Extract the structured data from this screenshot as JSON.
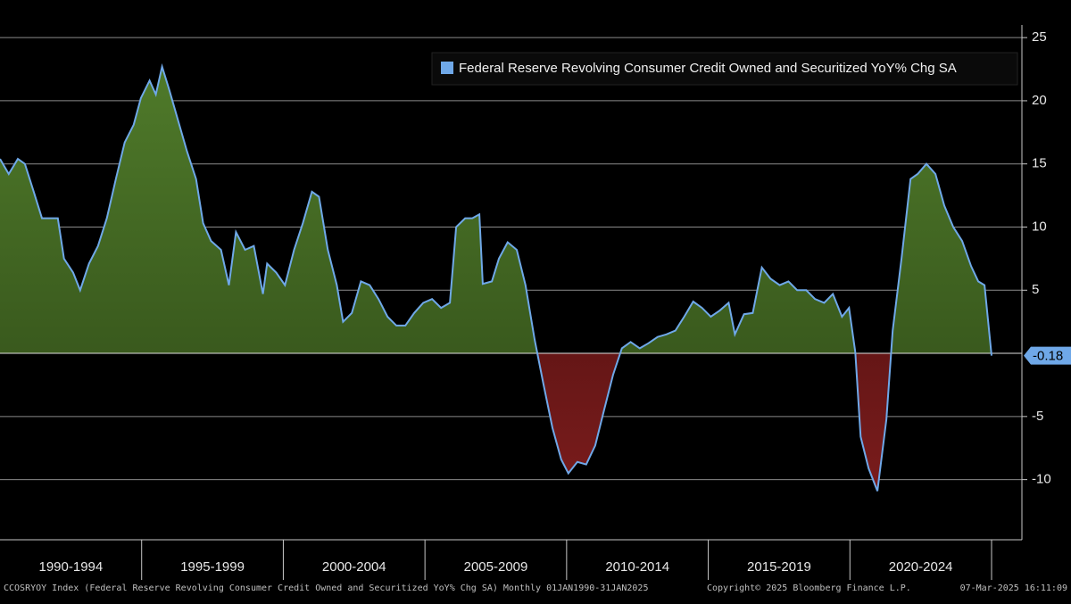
{
  "chart_data": {
    "type": "area",
    "legend": "Federal Reserve Revolving Consumer Credit Owned and Securitized YoY% Chg SA",
    "xperiods": [
      "1990-1994",
      "1995-1999",
      "2000-2004",
      "2005-2009",
      "2010-2014",
      "2015-2019",
      "2020-2024"
    ],
    "xlim": [
      1990,
      2025
    ],
    "ylim": [
      -14.76,
      26
    ],
    "yticks": [
      -10,
      -5,
      5,
      10,
      15,
      20,
      25
    ],
    "grid": true,
    "positive_color": "#4f7a2a",
    "negative_color": "#7a1c1c",
    "x": [
      1990.0,
      1990.31,
      1990.63,
      1990.88,
      1991.19,
      1991.48,
      1991.82,
      1992.04,
      1992.26,
      1992.58,
      1992.83,
      1993.14,
      1993.46,
      1993.77,
      1994.09,
      1994.4,
      1994.72,
      1994.97,
      1995.28,
      1995.5,
      1995.72,
      1995.97,
      1996.29,
      1996.6,
      1996.92,
      1997.17,
      1997.45,
      1997.8,
      1998.08,
      1998.33,
      1998.65,
      1998.96,
      1999.28,
      1999.43,
      1999.75,
      2000.06,
      2000.38,
      2000.69,
      2001.01,
      2001.26,
      2001.57,
      2001.89,
      2002.11,
      2002.42,
      2002.74,
      2003.05,
      2003.36,
      2003.68,
      2003.99,
      2004.31,
      2004.62,
      2004.94,
      2005.25,
      2005.57,
      2005.88,
      2006.1,
      2006.42,
      2006.67,
      2006.92,
      2007.04,
      2007.36,
      2007.61,
      2007.92,
      2008.24,
      2008.55,
      2008.87,
      2009.18,
      2009.5,
      2009.81,
      2010.06,
      2010.38,
      2010.69,
      2011.01,
      2011.32,
      2011.64,
      2011.95,
      2012.26,
      2012.58,
      2012.89,
      2013.21,
      2013.52,
      2013.84,
      2014.15,
      2014.47,
      2014.78,
      2015.09,
      2015.41,
      2015.72,
      2015.94,
      2016.26,
      2016.57,
      2016.89,
      2017.2,
      2017.52,
      2017.83,
      2018.14,
      2018.46,
      2018.77,
      2019.09,
      2019.4,
      2019.72,
      2019.97,
      2020.19,
      2020.38,
      2020.66,
      2020.97,
      2021.29,
      2021.51,
      2021.82,
      2022.14,
      2022.39,
      2022.7,
      2023.02,
      2023.33,
      2023.65,
      2023.96,
      2024.28,
      2024.53,
      2024.75,
      2025.0
    ],
    "series": [
      {
        "name": "Federal Reserve Revolving Consumer Credit Owned and Securitized YoY% Chg SA",
        "color": "#6fa8e8",
        "values": [
          15.4,
          14.2,
          15.4,
          15.0,
          12.8,
          10.7,
          10.7,
          10.7,
          7.5,
          6.4,
          5.0,
          7.1,
          8.5,
          10.7,
          13.8,
          16.7,
          18.1,
          20.2,
          21.6,
          20.5,
          22.7,
          20.9,
          18.4,
          16.0,
          13.8,
          10.3,
          8.9,
          8.2,
          5.4,
          9.6,
          8.2,
          8.5,
          4.7,
          7.1,
          6.4,
          5.4,
          8.2,
          10.3,
          12.8,
          12.4,
          8.2,
          5.4,
          2.5,
          3.2,
          5.7,
          5.4,
          4.3,
          2.9,
          2.2,
          2.2,
          3.2,
          4.0,
          4.3,
          3.6,
          4.0,
          10.0,
          10.7,
          10.7,
          11.0,
          5.5,
          5.7,
          7.5,
          8.8,
          8.2,
          5.4,
          1.1,
          -2.4,
          -5.9,
          -8.4,
          -9.5,
          -8.6,
          -8.8,
          -7.3,
          -4.5,
          -1.7,
          0.4,
          0.9,
          0.4,
          0.8,
          1.3,
          1.5,
          1.8,
          2.9,
          4.1,
          3.6,
          2.9,
          3.4,
          4.0,
          1.5,
          3.1,
          3.2,
          6.8,
          5.9,
          5.4,
          5.7,
          5.0,
          5.0,
          4.3,
          4.0,
          4.7,
          2.9,
          3.6,
          0.1,
          -6.6,
          -9.1,
          -10.9,
          -5.2,
          1.8,
          7.5,
          13.8,
          14.2,
          15.0,
          14.2,
          11.7,
          10.0,
          8.9,
          6.9,
          5.7,
          5.4,
          -0.18
        ]
      }
    ]
  },
  "footer": {
    "left": "CCOSRYOY Index (Federal Reserve Revolving Consumer Credit Owned and Securitized YoY% Chg SA)  Monthly 01JAN1990-31JAN2025",
    "center": "Copyright© 2025 Bloomberg Finance L.P.",
    "right": "07-Mar-2025 16:11:09"
  }
}
